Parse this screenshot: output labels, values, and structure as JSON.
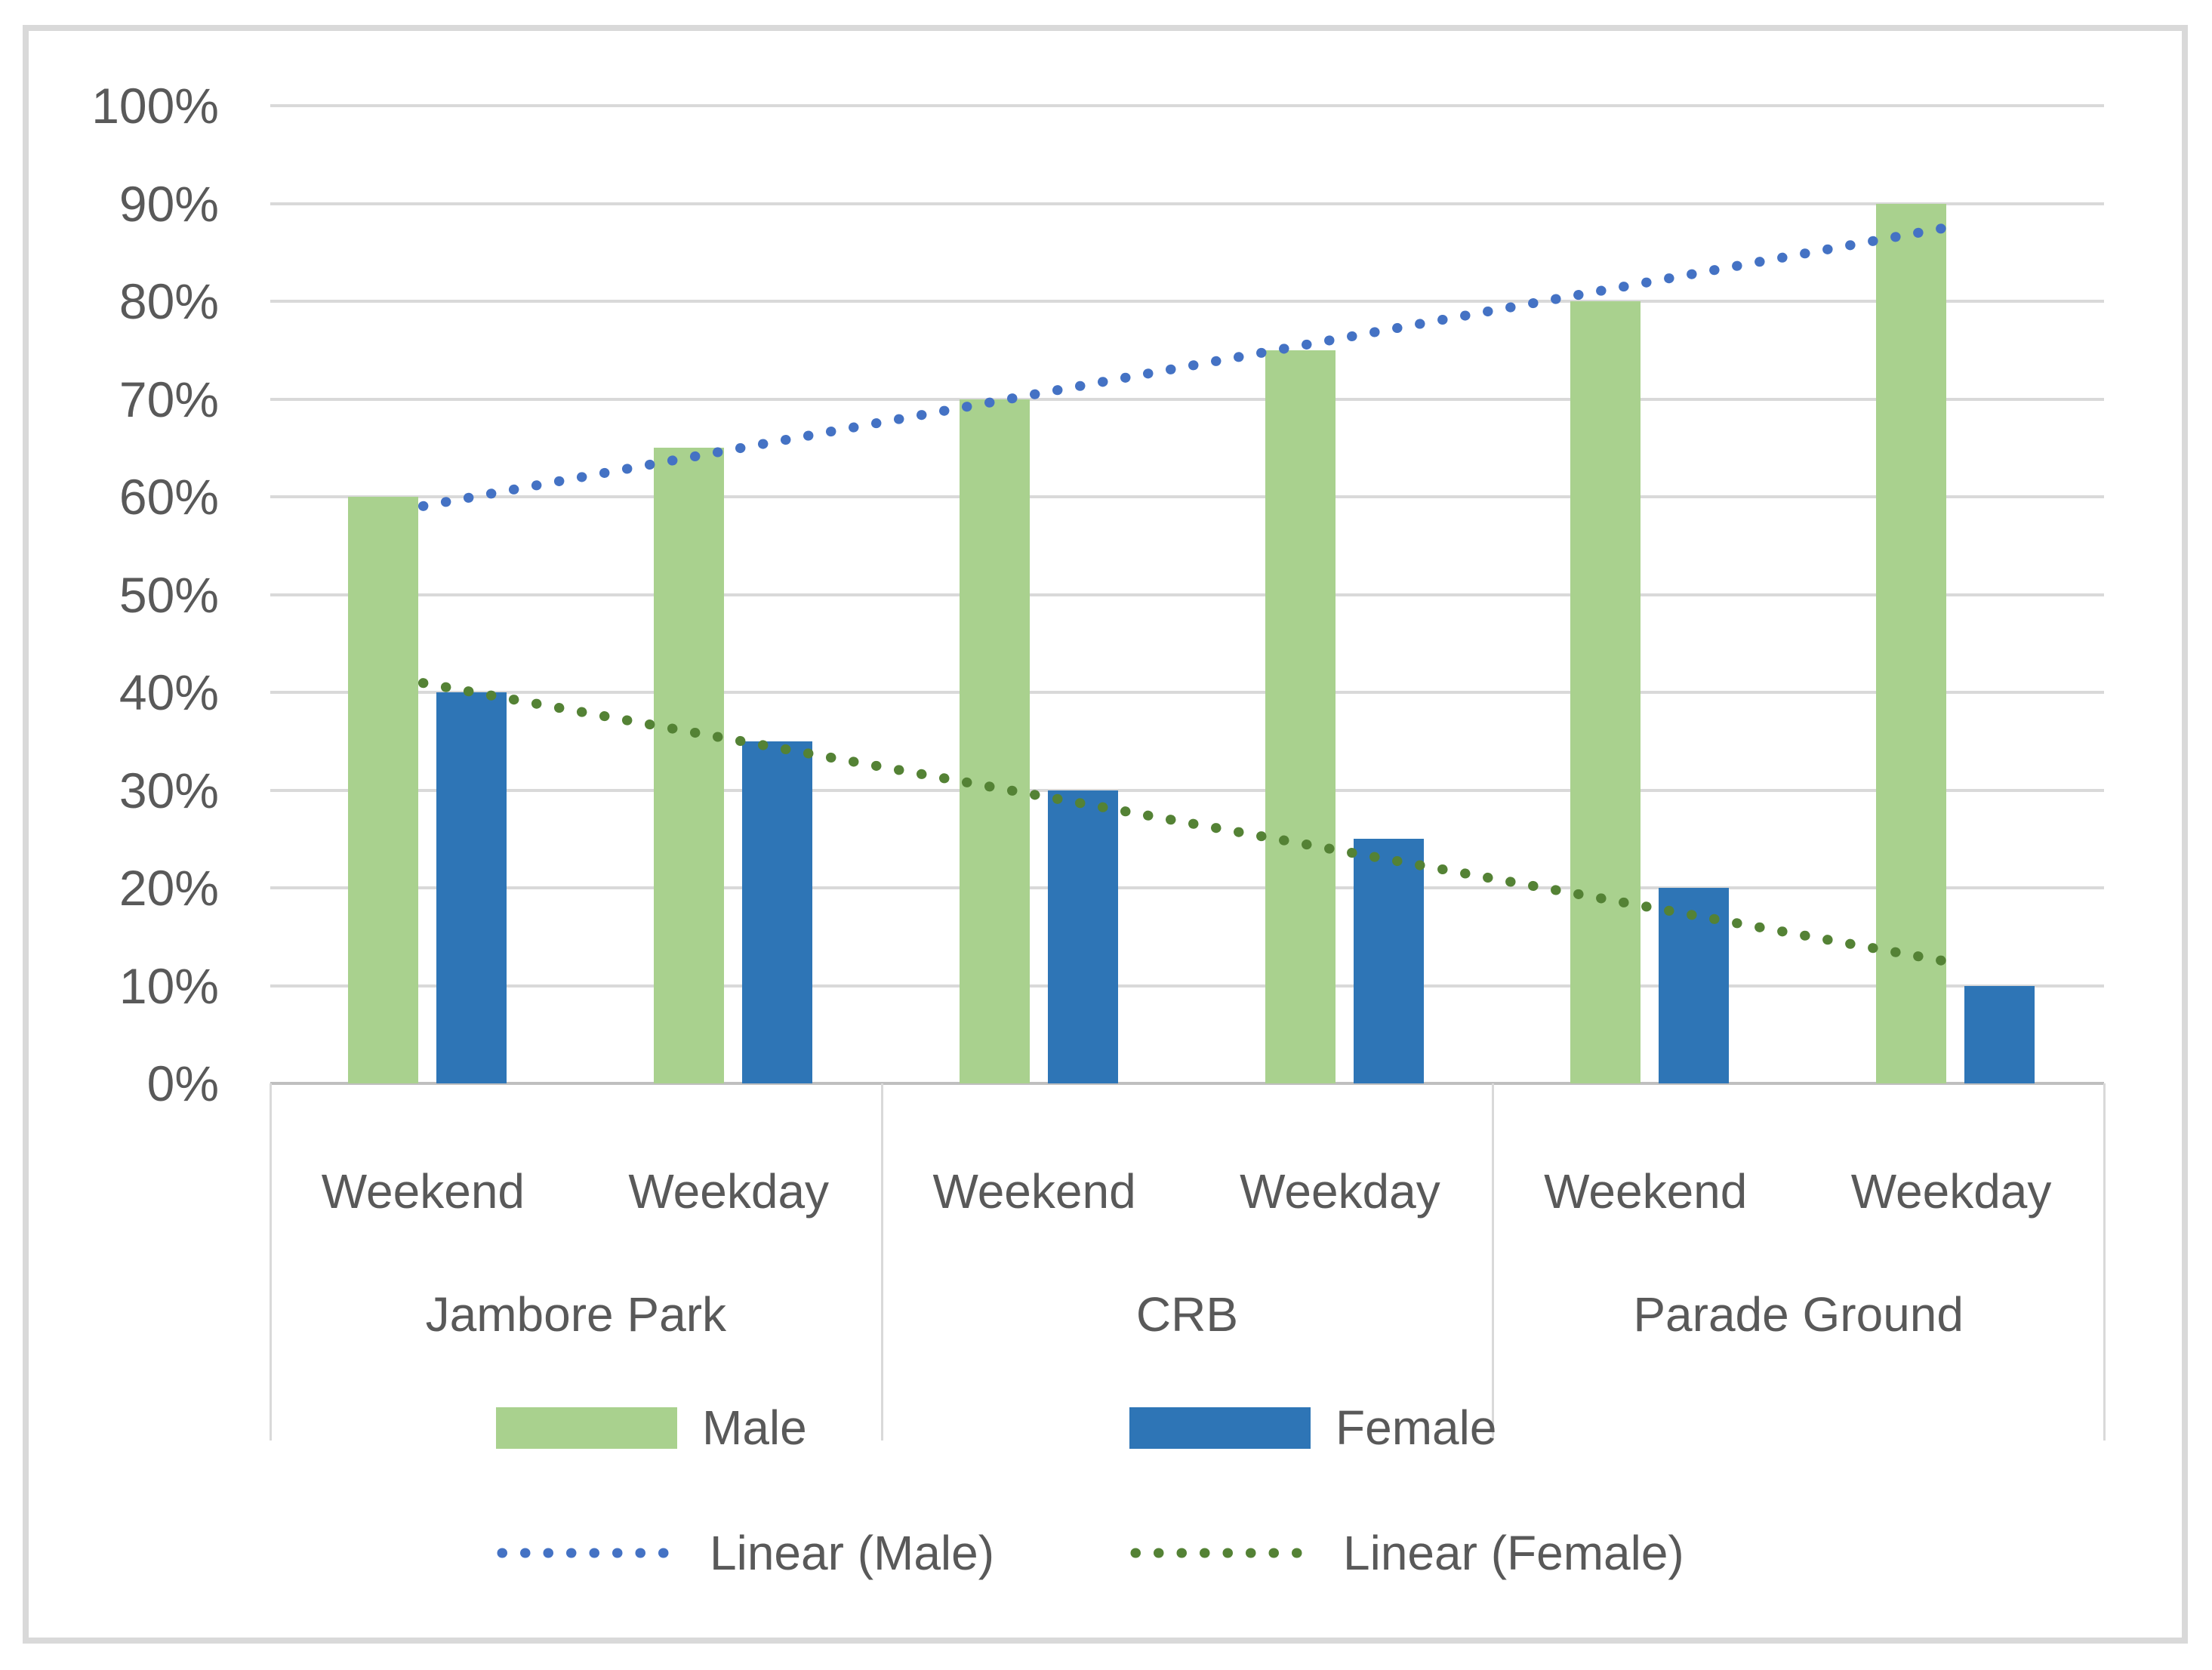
{
  "chart_data": {
    "type": "bar",
    "title": "",
    "unit": "%",
    "groups": [
      {
        "label": "Jambore Park",
        "categories": [
          "Weekend",
          "Weekday"
        ]
      },
      {
        "label": "CRB",
        "categories": [
          "Weekend",
          "Weekday"
        ]
      },
      {
        "label": "Parade Ground",
        "categories": [
          "Weekend",
          "Weekday"
        ]
      }
    ],
    "series": [
      {
        "name": "Male",
        "values": [
          60,
          65,
          70,
          75,
          80,
          90
        ],
        "color": "#A9D18E"
      },
      {
        "name": "Female",
        "values": [
          40,
          35,
          30,
          25,
          20,
          10
        ],
        "color": "#2E75B6"
      }
    ],
    "trendlines": [
      {
        "name": "Linear (Male)",
        "series_index": 0,
        "fit": "linear",
        "color": "#4472C4"
      },
      {
        "name": "Linear (Female)",
        "series_index": 1,
        "fit": "linear",
        "color": "#548235"
      }
    ],
    "y_axis": {
      "min": 0,
      "max": 100,
      "step": 10,
      "tick_labels": [
        "0%",
        "10%",
        "20%",
        "30%",
        "40%",
        "50%",
        "60%",
        "70%",
        "80%",
        "90%",
        "100%"
      ],
      "gridlines": true
    },
    "legend": {
      "position": "bottom",
      "rows": [
        [
          "Male",
          "Female"
        ],
        [
          "Linear (Male)",
          "Linear (Female)"
        ]
      ]
    }
  },
  "colors": {
    "male_bar": "#A9D18E",
    "female_bar": "#2E75B6",
    "male_trendline": "#4472C4",
    "female_trendline": "#548235",
    "gridline": "#D9D9D9",
    "axis_line": "#BFBFBF",
    "axis_text": "#595959",
    "chart_border": "#D9D9D9",
    "background": "#FFFFFF"
  }
}
